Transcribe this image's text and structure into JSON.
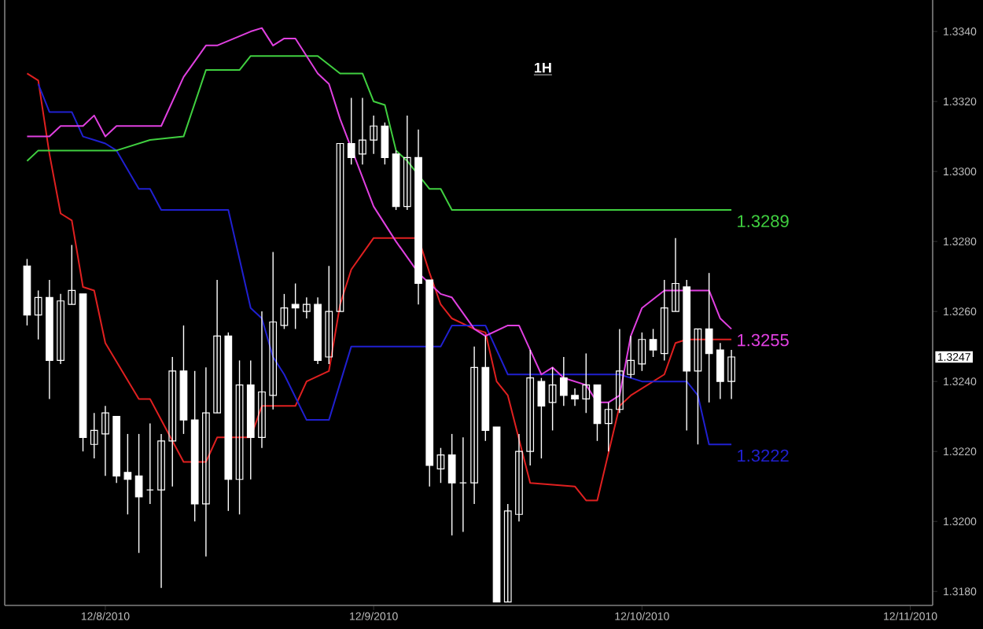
{
  "chart_data": {
    "type": "candlestick",
    "title": "1H",
    "color": "#ffffff",
    "x": [
      "2010-12-07T17:00",
      "2010-12-07T18:00",
      "2010-12-07T19:00",
      "2010-12-07T20:00",
      "2010-12-07T21:00",
      "2010-12-07T22:00",
      "2010-12-07T23:00",
      "2010-12-08T00:00",
      "2010-12-08T01:00",
      "2010-12-08T02:00",
      "2010-12-08T03:00",
      "2010-12-08T04:00",
      "2010-12-08T05:00",
      "2010-12-08T06:00",
      "2010-12-08T07:00",
      "2010-12-08T08:00",
      "2010-12-08T09:00",
      "2010-12-08T10:00",
      "2010-12-08T11:00",
      "2010-12-08T12:00",
      "2010-12-08T13:00",
      "2010-12-08T14:00",
      "2010-12-08T15:00",
      "2010-12-08T16:00",
      "2010-12-08T17:00",
      "2010-12-08T18:00",
      "2010-12-08T19:00",
      "2010-12-08T20:00",
      "2010-12-08T21:00",
      "2010-12-08T22:00",
      "2010-12-08T23:00",
      "2010-12-09T00:00",
      "2010-12-09T01:00",
      "2010-12-09T02:00",
      "2010-12-09T03:00",
      "2010-12-09T04:00",
      "2010-12-09T05:00",
      "2010-12-09T06:00",
      "2010-12-09T07:00",
      "2010-12-09T08:00",
      "2010-12-09T09:00",
      "2010-12-09T10:00",
      "2010-12-09T11:00",
      "2010-12-09T12:00",
      "2010-12-09T13:00",
      "2010-12-09T14:00",
      "2010-12-09T15:00",
      "2010-12-09T16:00",
      "2010-12-09T17:00",
      "2010-12-09T18:00",
      "2010-12-09T19:00",
      "2010-12-09T20:00",
      "2010-12-09T21:00",
      "2010-12-09T22:00",
      "2010-12-09T23:00",
      "2010-12-10T00:00",
      "2010-12-10T01:00",
      "2010-12-10T02:00",
      "2010-12-10T03:00",
      "2010-12-10T04:00",
      "2010-12-10T05:00",
      "2010-12-10T06:00",
      "2010-12-10T07:00",
      "2010-12-10T08:00"
    ],
    "ohlc": [
      [
        1.3273,
        1.3275,
        1.3256,
        1.3259
      ],
      [
        1.3259,
        1.3266,
        1.3252,
        1.3264
      ],
      [
        1.3264,
        1.3269,
        1.3235,
        1.3246
      ],
      [
        1.3246,
        1.3265,
        1.3245,
        1.3263
      ],
      [
        1.3262,
        1.3279,
        1.3262,
        1.3266
      ],
      [
        1.3265,
        1.3265,
        1.322,
        1.3224
      ],
      [
        1.3222,
        1.3231,
        1.3218,
        1.3226
      ],
      [
        1.3225,
        1.3233,
        1.3213,
        1.3231
      ],
      [
        1.323,
        1.323,
        1.3211,
        1.3213
      ],
      [
        1.3214,
        1.3225,
        1.3202,
        1.3212
      ],
      [
        1.3213,
        1.3225,
        1.3191,
        1.3207
      ],
      [
        1.3209,
        1.3228,
        1.3205,
        1.3209
      ],
      [
        1.3209,
        1.3225,
        1.3181,
        1.3223
      ],
      [
        1.3223,
        1.3247,
        1.321,
        1.3243
      ],
      [
        1.3243,
        1.3256,
        1.3225,
        1.3229
      ],
      [
        1.3229,
        1.3243,
        1.32,
        1.3205
      ],
      [
        1.3205,
        1.3244,
        1.319,
        1.3231
      ],
      [
        1.3231,
        1.3269,
        1.3231,
        1.3253
      ],
      [
        1.3253,
        1.3254,
        1.3203,
        1.3212
      ],
      [
        1.3212,
        1.3246,
        1.3202,
        1.3239
      ],
      [
        1.3239,
        1.3246,
        1.3212,
        1.3224
      ],
      [
        1.3224,
        1.326,
        1.3221,
        1.3237
      ],
      [
        1.3236,
        1.3277,
        1.3232,
        1.3257
      ],
      [
        1.3256,
        1.3265,
        1.3255,
        1.3261
      ],
      [
        1.3262,
        1.3268,
        1.3255,
        1.3261
      ],
      [
        1.326,
        1.3264,
        1.3258,
        1.3262
      ],
      [
        1.3262,
        1.3264,
        1.3245,
        1.3246
      ],
      [
        1.3247,
        1.3273,
        1.3245,
        1.326
      ],
      [
        1.326,
        1.3308,
        1.326,
        1.3308
      ],
      [
        1.3308,
        1.3321,
        1.3302,
        1.3304
      ],
      [
        1.3305,
        1.3321,
        1.3302,
        1.3309
      ],
      [
        1.3309,
        1.3316,
        1.3305,
        1.3313
      ],
      [
        1.3313,
        1.3314,
        1.3302,
        1.3304
      ],
      [
        1.3305,
        1.3306,
        1.3289,
        1.329
      ],
      [
        1.329,
        1.3316,
        1.3289,
        1.3304
      ],
      [
        1.3304,
        1.3312,
        1.3262,
        1.3268
      ],
      [
        1.3269,
        1.3269,
        1.321,
        1.3216
      ],
      [
        1.3215,
        1.3221,
        1.3211,
        1.3219
      ],
      [
        1.3219,
        1.3225,
        1.3196,
        1.3211
      ],
      [
        1.3211,
        1.3224,
        1.3197,
        1.3211
      ],
      [
        1.3211,
        1.325,
        1.3205,
        1.3244
      ],
      [
        1.3244,
        1.3253,
        1.3223,
        1.3226
      ],
      [
        1.3227,
        1.3227,
        1.3177,
        1.3177
      ],
      [
        1.3177,
        1.3205,
        1.3177,
        1.3203
      ],
      [
        1.3202,
        1.3225,
        1.32,
        1.322
      ],
      [
        1.322,
        1.3249,
        1.3216,
        1.3241
      ],
      [
        1.324,
        1.3241,
        1.3218,
        1.3233
      ],
      [
        1.3234,
        1.3244,
        1.3226,
        1.3239
      ],
      [
        1.3241,
        1.3247,
        1.3233,
        1.3236
      ],
      [
        1.3236,
        1.3238,
        1.3233,
        1.3235
      ],
      [
        1.3235,
        1.3248,
        1.3231,
        1.3239
      ],
      [
        1.3239,
        1.3239,
        1.3223,
        1.3228
      ],
      [
        1.3228,
        1.3234,
        1.322,
        1.3232
      ],
      [
        1.3232,
        1.3255,
        1.3231,
        1.3243
      ],
      [
        1.3242,
        1.3253,
        1.3241,
        1.3246
      ],
      [
        1.3245,
        1.3254,
        1.3243,
        1.3252
      ],
      [
        1.3252,
        1.3255,
        1.3247,
        1.3249
      ],
      [
        1.3248,
        1.3269,
        1.3246,
        1.3261
      ],
      [
        1.326,
        1.3281,
        1.326,
        1.3268
      ],
      [
        1.3267,
        1.3269,
        1.3226,
        1.3243
      ],
      [
        1.3243,
        1.3255,
        1.3222,
        1.3255
      ],
      [
        1.3255,
        1.3271,
        1.3234,
        1.3248
      ],
      [
        1.3249,
        1.3251,
        1.3235,
        1.324
      ],
      [
        1.324,
        1.3249,
        1.3235,
        1.3247
      ]
    ],
    "series": [
      {
        "type": "line",
        "color": "#e02020",
        "x": [
          "2010-12-07T17:00",
          "2010-12-07T18:00",
          "2010-12-07T19:00",
          "2010-12-07T20:00",
          "2010-12-07T21:00",
          "2010-12-07T22:00",
          "2010-12-07T23:00",
          "2010-12-08T00:00",
          "2010-12-08T03:00",
          "2010-12-08T04:00",
          "2010-12-08T07:00",
          "2010-12-08T09:00",
          "2010-12-08T10:00",
          "2010-12-08T13:00",
          "2010-12-08T14:00",
          "2010-12-08T17:00",
          "2010-12-08T18:00",
          "2010-12-08T20:00",
          "2010-12-08T21:00",
          "2010-12-08T22:00",
          "2010-12-09T00:00",
          "2010-12-09T04:00",
          "2010-12-09T05:00",
          "2010-12-09T06:00",
          "2010-12-09T07:00",
          "2010-12-09T09:00",
          "2010-12-09T10:00",
          "2010-12-09T11:00",
          "2010-12-09T12:00",
          "2010-12-09T14:00",
          "2010-12-09T18:00",
          "2010-12-09T19:00",
          "2010-12-09T20:00",
          "2010-12-09T22:00",
          "2010-12-09T23:00",
          "2010-12-10T00:00",
          "2010-12-10T02:00",
          "2010-12-10T03:00",
          "2010-12-10T04:00",
          "2010-12-10T08:00"
        ],
        "values": [
          1.3328,
          1.3326,
          1.3305,
          1.3288,
          1.3286,
          1.3267,
          1.3266,
          1.3251,
          1.3235,
          1.3235,
          1.3217,
          1.3217,
          1.3224,
          1.3224,
          1.3233,
          1.3233,
          1.324,
          1.3243,
          1.3262,
          1.3272,
          1.3281,
          1.3281,
          1.3271,
          1.3262,
          1.3258,
          1.3255,
          1.3254,
          1.324,
          1.3236,
          1.3211,
          1.321,
          1.3206,
          1.3206,
          1.3233,
          1.3236,
          1.3238,
          1.3242,
          1.3251,
          1.3252,
          1.3252
        ]
      },
      {
        "type": "line",
        "color": "#2020d0",
        "x": [
          "2010-12-07T18:00",
          "2010-12-07T19:00",
          "2010-12-07T21:00",
          "2010-12-07T22:00",
          "2010-12-07T23:00",
          "2010-12-08T00:00",
          "2010-12-08T01:00",
          "2010-12-08T03:00",
          "2010-12-08T04:00",
          "2010-12-08T05:00",
          "2010-12-08T11:00",
          "2010-12-08T13:00",
          "2010-12-08T14:00",
          "2010-12-08T15:00",
          "2010-12-08T16:00",
          "2010-12-08T18:00",
          "2010-12-08T20:00",
          "2010-12-08T22:00",
          "2010-12-09T06:00",
          "2010-12-09T07:00",
          "2010-12-09T10:00",
          "2010-12-09T12:00",
          "2010-12-09T22:00",
          "2010-12-10T00:00",
          "2010-12-10T04:00",
          "2010-12-10T05:00",
          "2010-12-10T06:00",
          "2010-12-10T08:00"
        ],
        "values": [
          1.3325,
          1.3317,
          1.3317,
          1.331,
          1.3309,
          1.3308,
          1.3306,
          1.3295,
          1.3295,
          1.3289,
          1.3289,
          1.3261,
          1.3258,
          1.3247,
          1.3242,
          1.3229,
          1.3229,
          1.325,
          1.325,
          1.3256,
          1.3256,
          1.3242,
          1.3242,
          1.324,
          1.324,
          1.3236,
          1.3222,
          1.3222
        ]
      },
      {
        "type": "line",
        "color": "#40d040",
        "x": [
          "2010-12-07T17:00",
          "2010-12-07T18:00",
          "2010-12-08T01:00",
          "2010-12-08T04:00",
          "2010-12-08T07:00",
          "2010-12-08T09:00",
          "2010-12-08T12:00",
          "2010-12-08T13:00",
          "2010-12-08T19:00",
          "2010-12-08T21:00",
          "2010-12-08T23:00",
          "2010-12-09T00:00",
          "2010-12-09T01:00",
          "2010-12-09T02:00",
          "2010-12-09T03:00",
          "2010-12-09T05:00",
          "2010-12-09T06:00",
          "2010-12-09T07:00",
          "2010-12-10T08:00"
        ],
        "values": [
          1.3303,
          1.3306,
          1.3306,
          1.3309,
          1.331,
          1.3329,
          1.3329,
          1.3333,
          1.3333,
          1.3328,
          1.3328,
          1.332,
          1.3319,
          1.3306,
          1.3303,
          1.3295,
          1.3295,
          1.3289,
          1.3289
        ]
      },
      {
        "type": "line",
        "color": "#e040e0",
        "x": [
          "2010-12-07T17:00",
          "2010-12-07T19:00",
          "2010-12-07T20:00",
          "2010-12-07T22:00",
          "2010-12-07T23:00",
          "2010-12-08T00:00",
          "2010-12-08T01:00",
          "2010-12-08T05:00",
          "2010-12-08T07:00",
          "2010-12-08T09:00",
          "2010-12-08T10:00",
          "2010-12-08T13:00",
          "2010-12-08T14:00",
          "2010-12-08T15:00",
          "2010-12-08T16:00",
          "2010-12-08T17:00",
          "2010-12-08T18:00",
          "2010-12-08T19:00",
          "2010-12-08T20:00",
          "2010-12-08T21:00",
          "2010-12-09T00:00",
          "2010-12-09T02:00",
          "2010-12-09T04:00",
          "2010-12-09T06:00",
          "2010-12-09T07:00",
          "2010-12-09T09:00",
          "2010-12-09T10:00",
          "2010-12-09T12:00",
          "2010-12-09T13:00",
          "2010-12-09T14:00",
          "2010-12-09T15:00",
          "2010-12-09T16:00",
          "2010-12-09T17:00",
          "2010-12-09T19:00",
          "2010-12-09T20:00",
          "2010-12-09T21:00",
          "2010-12-09T22:00",
          "2010-12-09T23:00",
          "2010-12-10T00:00",
          "2010-12-10T02:00",
          "2010-12-10T06:00",
          "2010-12-10T07:00",
          "2010-12-10T08:00"
        ],
        "values": [
          1.331,
          1.331,
          1.3313,
          1.3313,
          1.3316,
          1.331,
          1.3313,
          1.3313,
          1.3327,
          1.3336,
          1.3336,
          1.334,
          1.3341,
          1.3336,
          1.3338,
          1.3338,
          1.3333,
          1.3328,
          1.3325,
          1.3315,
          1.329,
          1.328,
          1.3271,
          1.3265,
          1.3264,
          1.3255,
          1.3253,
          1.3256,
          1.3256,
          1.3249,
          1.3242,
          1.3244,
          1.3241,
          1.3239,
          1.3234,
          1.3234,
          1.3236,
          1.3253,
          1.3261,
          1.3266,
          1.3266,
          1.3258,
          1.3255
        ]
      }
    ],
    "xlim": [
      "2010-12-07T15:00",
      "2010-12-11T02:00"
    ],
    "xticks": [
      {
        "value": "2010-12-08",
        "label": "12/8/2010"
      },
      {
        "value": "2010-12-09",
        "label": "12/9/2010"
      },
      {
        "value": "2010-12-10",
        "label": "12/10/2010"
      },
      {
        "value": "2010-12-11",
        "label": "12/11/2010"
      }
    ],
    "ylim": [
      1.3176,
      1.3349
    ],
    "yticks": [
      {
        "value": 1.318,
        "label": "1.3180"
      },
      {
        "value": 1.32,
        "label": "1.3200"
      },
      {
        "value": 1.322,
        "label": "1.3220"
      },
      {
        "value": 1.324,
        "label": "1.3240"
      },
      {
        "value": 1.326,
        "label": "1.3260"
      },
      {
        "value": 1.328,
        "label": "1.3280"
      },
      {
        "value": 1.33,
        "label": "1.3300"
      },
      {
        "value": 1.332,
        "label": "1.3320"
      },
      {
        "value": 1.334,
        "label": "1.3340"
      }
    ],
    "annotations": [
      {
        "text": "1.3289",
        "x": "2010-12-10T08:00",
        "y": 1.3289
      },
      {
        "text": "1.3255",
        "x": "2010-12-10T08:00",
        "y": 1.3255
      },
      {
        "text": "1.3222",
        "x": "2010-12-10T08:00",
        "y": 1.3222
      },
      {
        "text": "1.3247",
        "y": 1.3247
      }
    ]
  }
}
